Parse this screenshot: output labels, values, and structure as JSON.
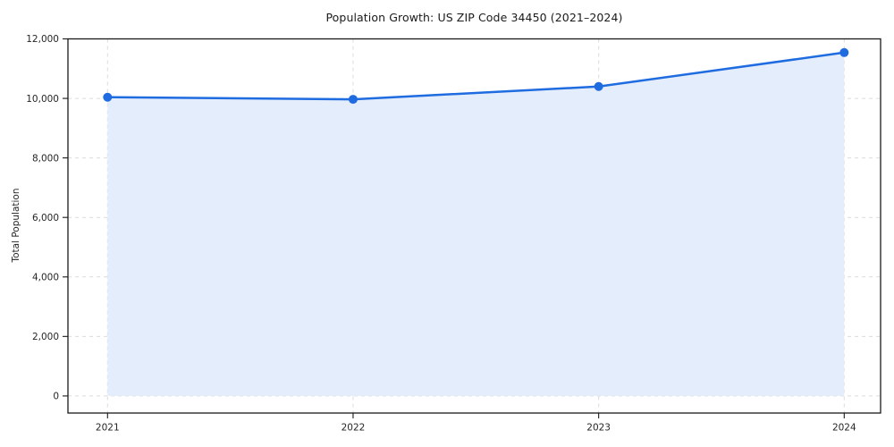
{
  "chart_data": {
    "type": "area",
    "title": "Population Growth: US ZIP Code 34450 (2021–2024)",
    "xlabel": "",
    "ylabel": "Total Population",
    "x": [
      2021,
      2022,
      2023,
      2024
    ],
    "values": [
      10040,
      9970,
      10400,
      11540
    ],
    "series": [
      {
        "name": "Total Population",
        "values": [
          10040,
          9970,
          10400,
          11540
        ]
      }
    ],
    "xtick_labels": [
      "2021",
      "2022",
      "2023",
      "2024"
    ],
    "yticks": [
      0,
      2000,
      4000,
      6000,
      8000,
      10000,
      12000
    ],
    "ytick_labels": [
      "0",
      "2,000",
      "4,000",
      "6,000",
      "8,000",
      "10,000",
      "12,000"
    ],
    "ylim": [
      0,
      12000
    ],
    "xlim": [
      2020.84,
      2024.15
    ],
    "grid": true,
    "grid_style": "dashed",
    "legend": "none",
    "marker": "circle",
    "colors": {
      "line": "#1f6be0",
      "marker": "#1f6be0",
      "area_fill": "#e4edfb",
      "grid": "#dbdbdb",
      "spine": "#1a1a1a",
      "tick_text": "#262626",
      "title_text": "#1a1a1a",
      "background": "#ffffff"
    }
  }
}
